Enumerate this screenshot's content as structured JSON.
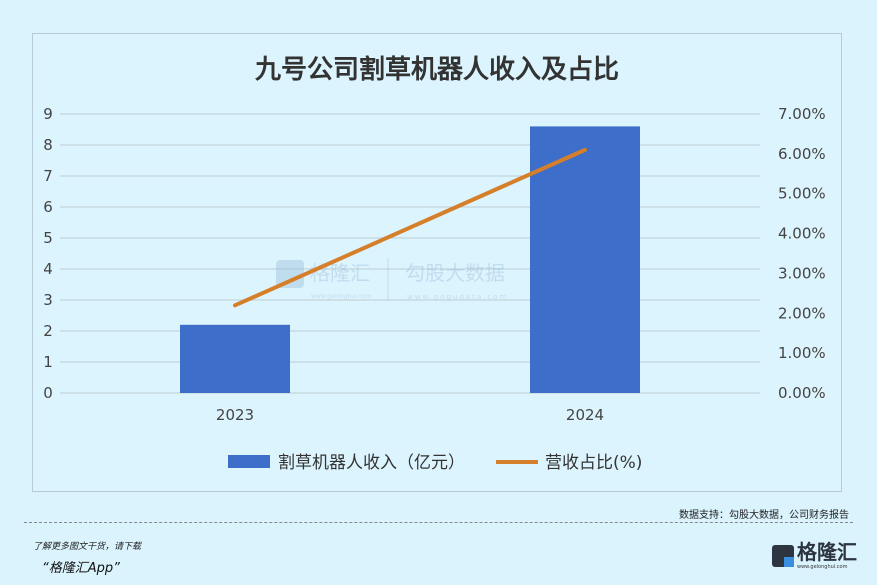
{
  "chart_data": {
    "type": "bar+line",
    "title": "九号公司割草机器人收入及占比",
    "categories": [
      "2023",
      "2024"
    ],
    "series": [
      {
        "name": "割草机器人收入（亿元）",
        "type": "bar",
        "axis": "left",
        "values": [
          2.2,
          8.6
        ],
        "color": "#3d6ec9"
      },
      {
        "name": "营收占比(%)",
        "type": "line",
        "axis": "right",
        "values": [
          2.2,
          6.1
        ],
        "color": "#d67f2a"
      }
    ],
    "y_left": {
      "min": 0,
      "max": 9,
      "ticks": [
        "0",
        "1",
        "2",
        "3",
        "4",
        "5",
        "6",
        "7",
        "8",
        "9"
      ]
    },
    "y_right": {
      "min": 0,
      "max": 7,
      "ticks": [
        "0.00%",
        "1.00%",
        "2.00%",
        "3.00%",
        "4.00%",
        "5.00%",
        "6.00%",
        "7.00%"
      ]
    },
    "grid": true,
    "legend": "bottom"
  },
  "watermark": {
    "left": "格隆汇",
    "left_url": "www.gelonghui.com",
    "right": "勾股大数据",
    "right_url": "www.gogudata.com"
  },
  "footer": {
    "source": "数据支持：勾股大数据，公司财务报告",
    "promo_line1": "了解更多图文干货，请下载",
    "promo_line2": "“格隆汇App”",
    "logo_text": "格隆汇",
    "logo_url": "www.gelonghui.com"
  }
}
